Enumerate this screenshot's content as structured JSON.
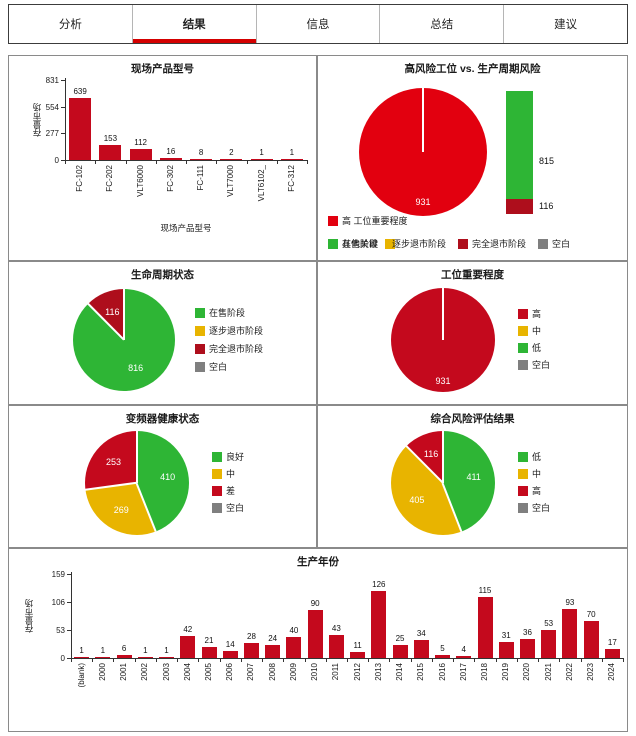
{
  "tabs": [
    {
      "label": "分析",
      "active": false
    },
    {
      "label": "结果",
      "active": true
    },
    {
      "label": "信息",
      "active": false
    },
    {
      "label": "总结",
      "active": false
    },
    {
      "label": "建议",
      "active": false
    }
  ],
  "colors": {
    "red": "#C4091D",
    "red_bright": "#E2000F",
    "red_dark": "#AE0E1C",
    "green": "#2EB535",
    "yellow": "#E8B400",
    "gray": "#7F7F7F",
    "tab_underline": "#D40000"
  },
  "chart_data": [
    {
      "id": "product-models",
      "type": "bar",
      "title": "现场产品型号",
      "xlabel": "现场产品型号",
      "ylabel": "存量市场",
      "ylim": [
        0,
        831
      ],
      "yticks": [
        0,
        277,
        554,
        831
      ],
      "categories": [
        "FC-102",
        "FC-202",
        "VLT6000",
        "FC-302",
        "FC-111",
        "VLT7000",
        "VLT6102_",
        "FC-312"
      ],
      "values": [
        639,
        153,
        112,
        16,
        8,
        2,
        1,
        1
      ],
      "bar_color": "red"
    },
    {
      "id": "high-risk-vs-lifecycle",
      "type": "pie",
      "title": "高风险工位 vs. 生产周期风险",
      "slices": [
        {
          "label": "高 工位重要程度",
          "value": 931,
          "color": "red_bright"
        }
      ],
      "stacked_bar": [
        {
          "label": "在售阶段",
          "value": 815,
          "color": "green"
        },
        {
          "label": "完全退市阶段",
          "value": 116,
          "color": "red_dark"
        }
      ],
      "legend_rows": [
        [
          {
            "label": "高 工位重要程度",
            "color": "red_bright"
          }
        ],
        [
          {
            "label": "在售阶段",
            "overlap_label": "其他关键",
            "color": "green"
          },
          {
            "label": "逐步退市阶段",
            "color": "yellow",
            "overlap_square": true
          },
          {
            "label": "完全退市阶段",
            "color": "red_dark"
          },
          {
            "label": "空白",
            "color": "gray"
          }
        ]
      ]
    },
    {
      "id": "lifecycle-status",
      "type": "pie",
      "title": "生命周期状态",
      "slices": [
        {
          "label": "在售阶段",
          "value": 816,
          "color": "green"
        },
        {
          "label": "完全退市阶段",
          "value": 116,
          "color": "red_dark"
        }
      ],
      "legend": [
        {
          "label": "在售阶段",
          "color": "green"
        },
        {
          "label": "逐步退市阶段",
          "color": "yellow"
        },
        {
          "label": "完全退市阶段",
          "color": "red_dark"
        },
        {
          "label": "空白",
          "color": "gray"
        }
      ]
    },
    {
      "id": "station-importance",
      "type": "pie",
      "title": "工位重要程度",
      "slices": [
        {
          "label": "高",
          "value": 931,
          "color": "red"
        }
      ],
      "legend": [
        {
          "label": "高",
          "color": "red"
        },
        {
          "label": "中",
          "color": "yellow"
        },
        {
          "label": "低",
          "color": "green"
        },
        {
          "label": "空白",
          "color": "gray"
        }
      ]
    },
    {
      "id": "drive-health",
      "type": "pie",
      "title": "变频器健康状态",
      "slices": [
        {
          "label": "良好",
          "value": 410,
          "color": "green"
        },
        {
          "label": "中",
          "value": 269,
          "color": "yellow"
        },
        {
          "label": "差",
          "value": 253,
          "color": "red"
        }
      ],
      "legend": [
        {
          "label": "良好",
          "color": "green"
        },
        {
          "label": "中",
          "color": "yellow"
        },
        {
          "label": "差",
          "color": "red"
        },
        {
          "label": "空白",
          "color": "gray"
        }
      ]
    },
    {
      "id": "overall-risk",
      "type": "pie",
      "title": "综合风险评估结果",
      "slices": [
        {
          "label": "低",
          "value": 411,
          "color": "green"
        },
        {
          "label": "中",
          "value": 405,
          "color": "yellow"
        },
        {
          "label": "高",
          "value": 116,
          "color": "red"
        }
      ],
      "legend": [
        {
          "label": "低",
          "color": "green"
        },
        {
          "label": "中",
          "color": "yellow"
        },
        {
          "label": "高",
          "color": "red"
        },
        {
          "label": "空白",
          "color": "gray"
        }
      ]
    },
    {
      "id": "production-year",
      "type": "bar",
      "title": "生产年份",
      "xlabel": "",
      "ylabel": "存量市场",
      "ylim": [
        0,
        159
      ],
      "yticks": [
        0,
        53,
        106,
        159
      ],
      "categories": [
        "(blank)",
        "2000",
        "2001",
        "2002",
        "2003",
        "2004",
        "2005",
        "2006",
        "2007",
        "2008",
        "2009",
        "2010",
        "2011",
        "2012",
        "2013",
        "2014",
        "2015",
        "2016",
        "2017",
        "2018",
        "2019",
        "2020",
        "2021",
        "2022",
        "2023",
        "2024"
      ],
      "values": [
        1,
        1,
        6,
        1,
        1,
        42,
        21,
        14,
        28,
        24,
        40,
        90,
        43,
        11,
        126,
        25,
        34,
        5,
        4,
        115,
        31,
        36,
        53,
        93,
        70,
        17
      ],
      "bar_color": "red"
    }
  ]
}
